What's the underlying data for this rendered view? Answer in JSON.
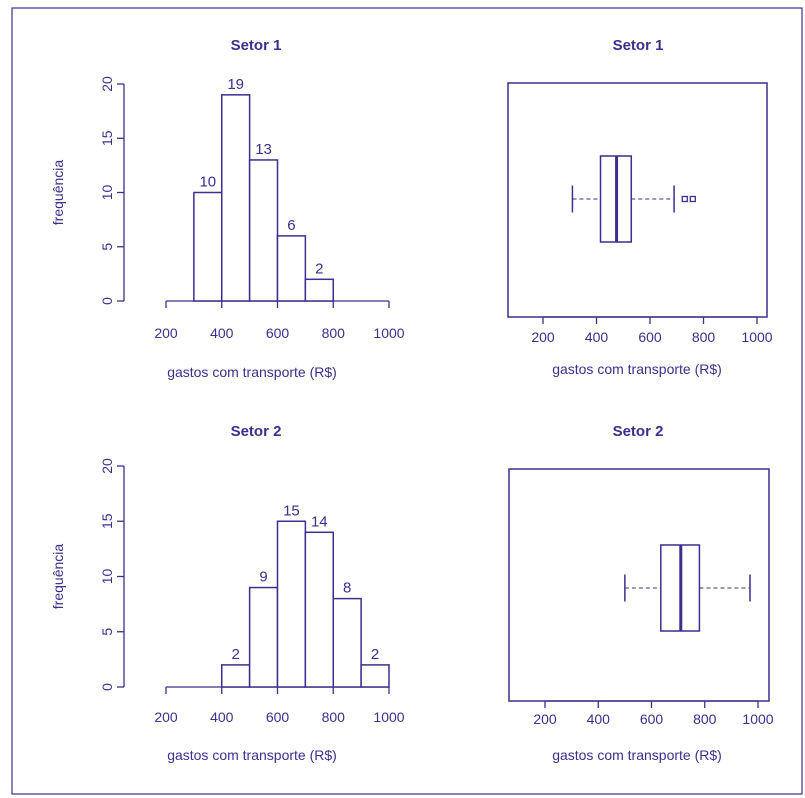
{
  "colors": {
    "ink": "#3b2f8f",
    "fill": "#ffffff"
  },
  "chart_data": [
    {
      "type": "bar",
      "title": "Setor 1",
      "xlabel": "gastos com transporte (R$)",
      "ylabel": "frequência",
      "xticks": [
        "200",
        "400",
        "600",
        "800",
        "1000"
      ],
      "yticks": [
        "0",
        "5",
        "10",
        "15",
        "20"
      ],
      "xlim": [
        200,
        1000
      ],
      "ylim": [
        0,
        20
      ],
      "bins": [
        [
          300,
          400
        ],
        [
          400,
          500
        ],
        [
          500,
          600
        ],
        [
          600,
          700
        ],
        [
          700,
          800
        ]
      ],
      "values": [
        10,
        19,
        13,
        6,
        2
      ],
      "labels": [
        "10",
        "19",
        "13",
        "6",
        "2"
      ]
    },
    {
      "type": "boxplot",
      "title": "Setor 1",
      "xlabel": "gastos com transporte (R$)",
      "xticks": [
        "200",
        "400",
        "600",
        "800",
        "1000"
      ],
      "xlim": [
        200,
        1000
      ],
      "whisker_low": 310,
      "q1": 415,
      "median": 475,
      "q3": 530,
      "whisker_high": 690,
      "outliers": [
        730,
        760
      ]
    },
    {
      "type": "bar",
      "title": "Setor 2",
      "xlabel": "gastos com transporte (R$)",
      "ylabel": "frequência",
      "xticks": [
        "200",
        "400",
        "600",
        "800",
        "1000"
      ],
      "yticks": [
        "0",
        "5",
        "10",
        "15",
        "20"
      ],
      "xlim": [
        200,
        1000
      ],
      "ylim": [
        0,
        20
      ],
      "bins": [
        [
          400,
          500
        ],
        [
          500,
          600
        ],
        [
          600,
          700
        ],
        [
          700,
          800
        ],
        [
          800,
          900
        ],
        [
          900,
          1000
        ]
      ],
      "values": [
        2,
        9,
        15,
        14,
        8,
        2
      ],
      "labels": [
        "2",
        "9",
        "15",
        "14",
        "8",
        "2"
      ]
    },
    {
      "type": "boxplot",
      "title": "Setor 2",
      "xlabel": "gastos com transporte (R$)",
      "xticks": [
        "200",
        "400",
        "600",
        "800",
        "1000"
      ],
      "xlim": [
        200,
        1000
      ],
      "whisker_low": 500,
      "q1": 635,
      "median": 710,
      "q3": 780,
      "whisker_high": 970,
      "outliers": []
    }
  ]
}
